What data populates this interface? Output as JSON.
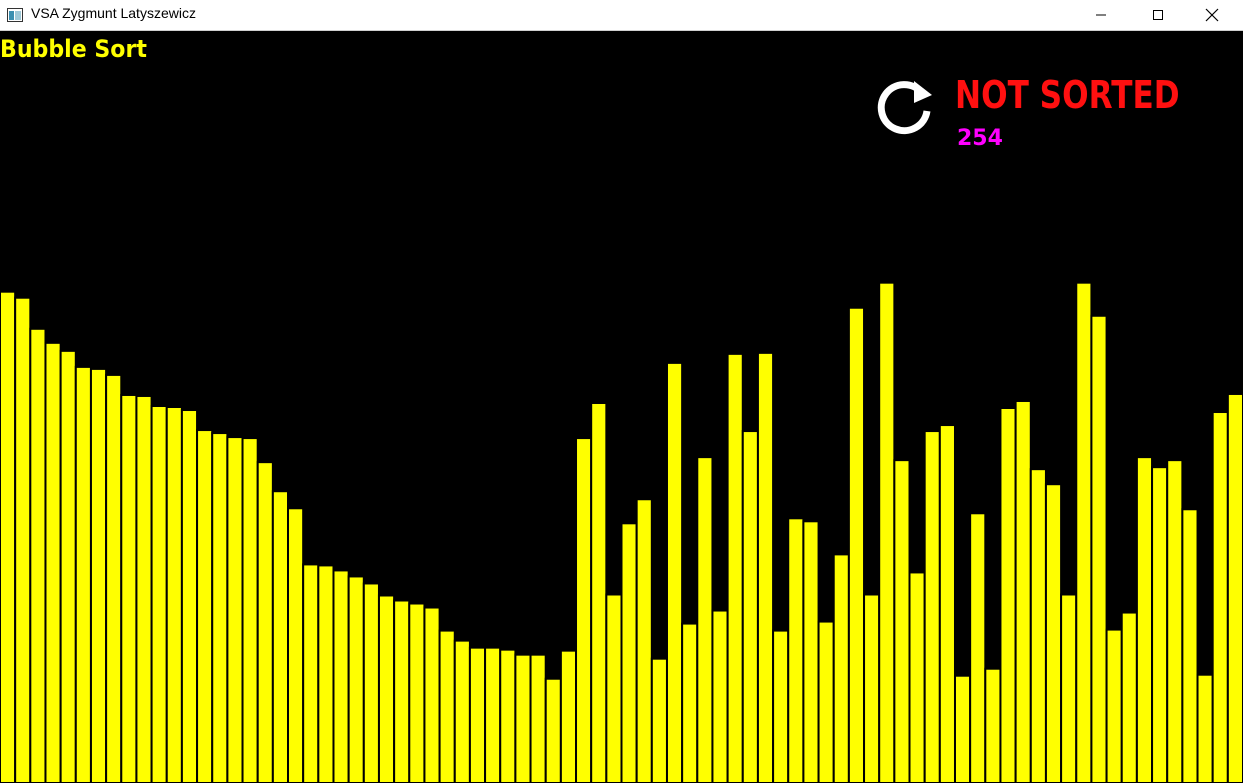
{
  "window": {
    "title": "VSA Zygmunt Latyszewicz"
  },
  "app": {
    "algorithm_title": "Bubble Sort",
    "status": "NOT SORTED",
    "counter": "254",
    "colors": {
      "bar": "#ffff00",
      "bar_outline": "#000000",
      "background": "#000000",
      "title": "#ffff00",
      "status": "#ff1010",
      "counter": "#ff00ff",
      "reset_icon": "#ffffff"
    }
  },
  "chart_data": {
    "type": "bar",
    "values": [
      490,
      484,
      453,
      439,
      431,
      415,
      413,
      407,
      387,
      386,
      376,
      375,
      372,
      352,
      349,
      345,
      344,
      320,
      291,
      274,
      218,
      217,
      212,
      206,
      199,
      187,
      182,
      179,
      175,
      152,
      142,
      135,
      135,
      133,
      128,
      128,
      104,
      132,
      344,
      379,
      188,
      259,
      283,
      124,
      419,
      159,
      325,
      172,
      428,
      351,
      429,
      152,
      264,
      261,
      161,
      228,
      474,
      188,
      499,
      322,
      210,
      351,
      357,
      107,
      269,
      114,
      374,
      381,
      313,
      298,
      188,
      499,
      466,
      153,
      170,
      325,
      315,
      322,
      273,
      108,
      370,
      388
    ],
    "ylim": [
      0,
      750
    ],
    "grid": false
  }
}
